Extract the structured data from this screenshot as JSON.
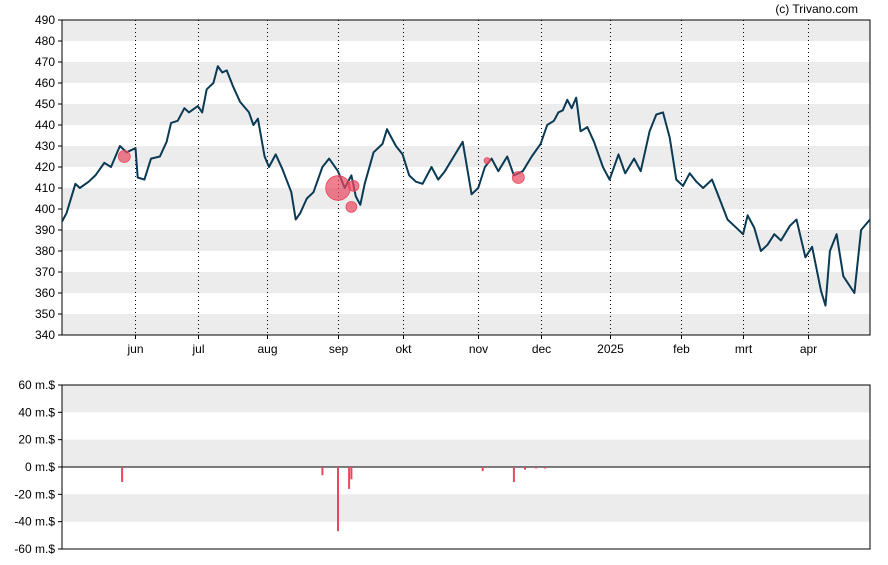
{
  "credit": "(c) Trivano.com",
  "chart_data": [
    {
      "type": "line",
      "title": "",
      "xlabel": "",
      "ylabel": "",
      "ylim": [
        340,
        490
      ],
      "yticks": [
        340,
        350,
        360,
        370,
        380,
        390,
        400,
        410,
        420,
        430,
        440,
        450,
        460,
        470,
        480,
        490
      ],
      "x_start": "2024-05-01",
      "x_end": "2025-04-29",
      "x_ticks": [
        {
          "label": "jun",
          "date": "2024-06-03"
        },
        {
          "label": "jul",
          "date": "2024-07-01"
        },
        {
          "label": "aug",
          "date": "2024-08-01"
        },
        {
          "label": "sep",
          "date": "2024-09-02"
        },
        {
          "label": "okt",
          "date": "2024-10-01"
        },
        {
          "label": "nov",
          "date": "2024-11-04"
        },
        {
          "label": "dec",
          "date": "2024-12-02"
        },
        {
          "label": "2025",
          "date": "2025-01-02"
        },
        {
          "label": "feb",
          "date": "2025-02-03"
        },
        {
          "label": "mrt",
          "date": "2025-03-03"
        },
        {
          "label": "apr",
          "date": "2025-04-01"
        }
      ],
      "grid": {
        "horizontal_bands": true,
        "vertical_dotted": true
      },
      "colors": {
        "line": "#0b3a55",
        "markers": "#e8475f",
        "band": "#ececec"
      },
      "series": [
        {
          "points": [
            [
              "2024-05-01",
              394
            ],
            [
              "2024-05-03",
              398
            ],
            [
              "2024-05-07",
              412
            ],
            [
              "2024-05-09",
              410
            ],
            [
              "2024-05-13",
              413
            ],
            [
              "2024-05-16",
              416
            ],
            [
              "2024-05-20",
              422
            ],
            [
              "2024-05-23",
              420
            ],
            [
              "2024-05-27",
              430
            ],
            [
              "2024-05-30",
              427
            ],
            [
              "2024-06-03",
              429
            ],
            [
              "2024-06-04",
              415
            ],
            [
              "2024-06-07",
              414
            ],
            [
              "2024-06-10",
              424
            ],
            [
              "2024-06-14",
              425
            ],
            [
              "2024-06-17",
              432
            ],
            [
              "2024-06-19",
              441
            ],
            [
              "2024-06-22",
              442
            ],
            [
              "2024-06-25",
              448
            ],
            [
              "2024-06-27",
              446
            ],
            [
              "2024-07-01",
              449
            ],
            [
              "2024-07-03",
              446
            ],
            [
              "2024-07-05",
              457
            ],
            [
              "2024-07-08",
              460
            ],
            [
              "2024-07-10",
              468
            ],
            [
              "2024-07-12",
              465
            ],
            [
              "2024-07-14",
              466
            ],
            [
              "2024-07-17",
              458
            ],
            [
              "2024-07-20",
              451
            ],
            [
              "2024-07-24",
              446
            ],
            [
              "2024-07-26",
              440
            ],
            [
              "2024-07-28",
              443
            ],
            [
              "2024-07-31",
              425
            ],
            [
              "2024-08-02",
              420
            ],
            [
              "2024-08-05",
              426
            ],
            [
              "2024-08-08",
              419
            ],
            [
              "2024-08-12",
              408
            ],
            [
              "2024-08-14",
              395
            ],
            [
              "2024-08-16",
              398
            ],
            [
              "2024-08-19",
              405
            ],
            [
              "2024-08-22",
              408
            ],
            [
              "2024-08-26",
              420
            ],
            [
              "2024-08-29",
              424
            ],
            [
              "2024-09-02",
              418
            ],
            [
              "2024-09-05",
              410
            ],
            [
              "2024-09-08",
              416
            ],
            [
              "2024-09-10",
              406
            ],
            [
              "2024-09-12",
              402
            ],
            [
              "2024-09-14",
              412
            ],
            [
              "2024-09-18",
              427
            ],
            [
              "2024-09-22",
              431
            ],
            [
              "2024-09-24",
              438
            ],
            [
              "2024-09-26",
              434
            ],
            [
              "2024-09-28",
              430
            ],
            [
              "2024-10-01",
              426
            ],
            [
              "2024-10-04",
              416
            ],
            [
              "2024-10-07",
              413
            ],
            [
              "2024-10-10",
              412
            ],
            [
              "2024-10-14",
              420
            ],
            [
              "2024-10-17",
              414
            ],
            [
              "2024-10-20",
              418
            ],
            [
              "2024-10-24",
              425
            ],
            [
              "2024-10-28",
              432
            ],
            [
              "2024-11-01",
              407
            ],
            [
              "2024-11-04",
              410
            ],
            [
              "2024-11-07",
              420
            ],
            [
              "2024-11-10",
              424
            ],
            [
              "2024-11-13",
              418
            ],
            [
              "2024-11-17",
              425
            ],
            [
              "2024-11-20",
              416
            ],
            [
              "2024-11-24",
              418
            ],
            [
              "2024-11-28",
              425
            ],
            [
              "2024-12-02",
              431
            ],
            [
              "2024-12-05",
              440
            ],
            [
              "2024-12-08",
              442
            ],
            [
              "2024-12-10",
              446
            ],
            [
              "2024-12-12",
              447
            ],
            [
              "2024-12-14",
              452
            ],
            [
              "2024-12-16",
              448
            ],
            [
              "2024-12-18",
              453
            ],
            [
              "2024-12-20",
              437
            ],
            [
              "2024-12-23",
              439
            ],
            [
              "2024-12-26",
              432
            ],
            [
              "2024-12-30",
              420
            ],
            [
              "2025-01-02",
              414
            ],
            [
              "2025-01-06",
              426
            ],
            [
              "2025-01-09",
              417
            ],
            [
              "2025-01-13",
              424
            ],
            [
              "2025-01-16",
              418
            ],
            [
              "2025-01-20",
              437
            ],
            [
              "2025-01-23",
              445
            ],
            [
              "2025-01-26",
              446
            ],
            [
              "2025-01-29",
              434
            ],
            [
              "2025-02-01",
              414
            ],
            [
              "2025-02-04",
              411
            ],
            [
              "2025-02-07",
              417
            ],
            [
              "2025-02-10",
              413
            ],
            [
              "2025-02-13",
              410
            ],
            [
              "2025-02-17",
              414
            ],
            [
              "2025-02-20",
              406
            ],
            [
              "2025-02-24",
              395
            ],
            [
              "2025-02-27",
              392
            ],
            [
              "2025-03-03",
              388
            ],
            [
              "2025-03-05",
              397
            ],
            [
              "2025-03-08",
              391
            ],
            [
              "2025-03-11",
              380
            ],
            [
              "2025-03-14",
              383
            ],
            [
              "2025-03-17",
              388
            ],
            [
              "2025-03-20",
              385
            ],
            [
              "2025-03-24",
              392
            ],
            [
              "2025-03-27",
              395
            ],
            [
              "2025-03-31",
              377
            ],
            [
              "2025-04-03",
              382
            ],
            [
              "2025-04-07",
              361
            ],
            [
              "2025-04-09",
              354
            ],
            [
              "2025-04-11",
              380
            ],
            [
              "2025-04-14",
              388
            ],
            [
              "2025-04-17",
              368
            ],
            [
              "2025-04-22",
              360
            ],
            [
              "2025-04-25",
              390
            ],
            [
              "2025-04-29",
              395
            ]
          ]
        }
      ],
      "markers": [
        {
          "date": "2024-05-29",
          "value": 425
        },
        {
          "date": "2024-09-02",
          "value": 410
        },
        {
          "date": "2024-09-08",
          "value": 401
        },
        {
          "date": "2024-09-09",
          "value": 411
        },
        {
          "date": "2024-11-08",
          "value": 423
        },
        {
          "date": "2024-11-22",
          "value": 415
        }
      ]
    },
    {
      "type": "bar",
      "title": "",
      "xlabel": "",
      "ylabel": "",
      "ylim": [
        -60,
        60
      ],
      "yticks": [
        {
          "value": 60,
          "label": "60 m.$"
        },
        {
          "value": 40,
          "label": "40 m.$"
        },
        {
          "value": 20,
          "label": "20 m.$"
        },
        {
          "value": 0,
          "label": "0 m.$"
        },
        {
          "value": -20,
          "label": "-20 m.$"
        },
        {
          "value": -40,
          "label": "-40 m.$"
        },
        {
          "value": -60,
          "label": "-60 m.$"
        }
      ],
      "bars": [
        {
          "date": "2024-05-28",
          "value": -11
        },
        {
          "date": "2024-08-26",
          "value": -6
        },
        {
          "date": "2024-09-02",
          "value": -47
        },
        {
          "date": "2024-09-07",
          "value": -16
        },
        {
          "date": "2024-09-08",
          "value": -9
        },
        {
          "date": "2024-11-06",
          "value": -3
        },
        {
          "date": "2024-11-20",
          "value": -11
        },
        {
          "date": "2024-11-25",
          "value": -2
        },
        {
          "date": "2024-11-30",
          "value": -1
        },
        {
          "date": "2024-12-04",
          "value": -1
        }
      ]
    }
  ]
}
